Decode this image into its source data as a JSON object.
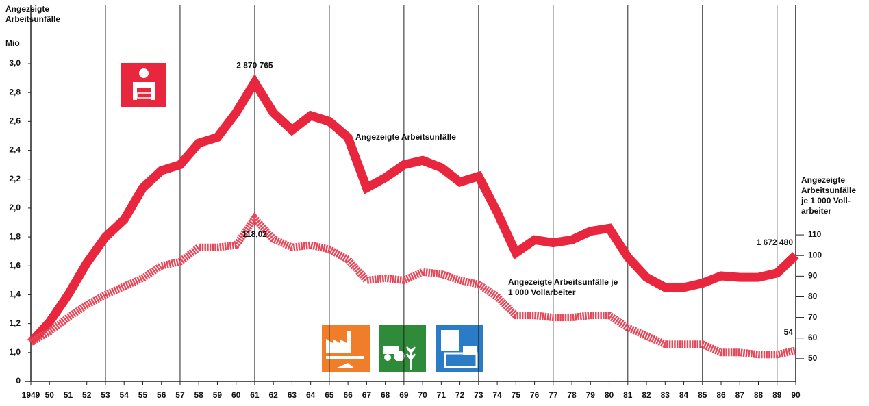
{
  "chart_data": {
    "type": "line",
    "ylabel": [
      "Angezeigte",
      "Arbeitsunfälle"
    ],
    "yunit": "Mio",
    "y2label": [
      "Angezeigte",
      "Arbeitsunfälle",
      "je 1 000 Voll-",
      "arbeiter"
    ],
    "categories": [
      "1949",
      "50",
      "51",
      "52",
      "53",
      "54",
      "55",
      "56",
      "57",
      "58",
      "59",
      "60",
      "61",
      "62",
      "63",
      "64",
      "65",
      "66",
      "67",
      "68",
      "69",
      "70",
      "71",
      "72",
      "73",
      "74",
      "75",
      "76",
      "77",
      "78",
      "79",
      "80",
      "81",
      "82",
      "83",
      "84",
      "85",
      "86",
      "87",
      "88",
      "89",
      "90"
    ],
    "series": [
      {
        "name": "Angezeigte Arbeitsunfälle",
        "color": "#e8263e",
        "values": [
          1.07,
          1.21,
          1.4,
          1.62,
          1.8,
          1.92,
          2.14,
          2.26,
          2.3,
          2.45,
          2.49,
          2.66,
          2.870765,
          2.66,
          2.54,
          2.64,
          2.6,
          2.49,
          2.14,
          2.21,
          2.3,
          2.33,
          2.28,
          2.18,
          2.22,
          1.97,
          1.69,
          1.78,
          1.76,
          1.78,
          1.84,
          1.86,
          1.66,
          1.52,
          1.45,
          1.45,
          1.48,
          1.53,
          1.52,
          1.52,
          1.55,
          1.67248
        ],
        "value_labels": [
          null,
          null,
          null,
          null,
          null,
          null,
          null,
          null,
          null,
          null,
          null,
          null,
          "2 870 765",
          null,
          null,
          null,
          null,
          null,
          null,
          null,
          null,
          null,
          null,
          null,
          null,
          null,
          null,
          null,
          null,
          null,
          null,
          null,
          null,
          null,
          null,
          null,
          null,
          null,
          null,
          null,
          null,
          "1 672 480"
        ]
      },
      {
        "name": "Angezeigte Arbeitsunfälle je 1 000 Vollarbeiter",
        "color": "#e6485a",
        "axis": "y2",
        "values": [
          58,
          63,
          70,
          76,
          81,
          85,
          89,
          95,
          97,
          104,
          104,
          105,
          118.02,
          108,
          104,
          105,
          103,
          98,
          88,
          89,
          88,
          92,
          91,
          88,
          86,
          80,
          71,
          71,
          70,
          70,
          71,
          71,
          65,
          61,
          57,
          57,
          57,
          53,
          53,
          52,
          52,
          54
        ],
        "value_labels": [
          null,
          null,
          null,
          null,
          null,
          null,
          null,
          null,
          null,
          null,
          null,
          null,
          "118,02",
          null,
          null,
          null,
          null,
          null,
          null,
          null,
          null,
          null,
          null,
          null,
          null,
          null,
          null,
          null,
          null,
          null,
          null,
          null,
          null,
          null,
          null,
          null,
          null,
          null,
          null,
          null,
          null,
          "54"
        ]
      }
    ],
    "ylim": [
      0,
      3.0
    ],
    "ybreak": [
      0,
      0.8
    ],
    "yticks": [
      0,
      {
        "value": 1.0,
        "label": "1,0"
      },
      {
        "value": 1.2,
        "label": "1,2"
      },
      {
        "value": 1.4,
        "label": "1,4"
      },
      {
        "value": 1.6,
        "label": "1,6"
      },
      {
        "value": 1.8,
        "label": "1,8"
      },
      {
        "value": 2.0,
        "label": "2,0"
      },
      {
        "value": 2.2,
        "label": "2,2"
      },
      {
        "value": 2.4,
        "label": "2,4"
      },
      {
        "value": 2.6,
        "label": "2,6"
      },
      {
        "value": 2.8,
        "label": "2,8"
      },
      {
        "value": 3.0,
        "label": "3,0"
      }
    ],
    "y2lim": [
      39,
      193
    ],
    "y2ticks": [
      50,
      60,
      70,
      80,
      90,
      100,
      110
    ],
    "vgrid_step": 4
  }
}
